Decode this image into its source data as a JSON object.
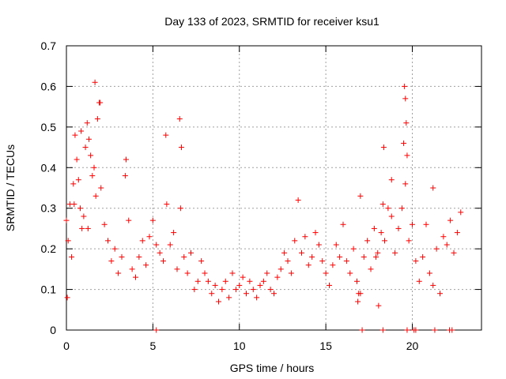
{
  "chart_data": {
    "type": "scatter",
    "title": "Day 133 of 2023, SRMTID for receiver ksu1",
    "xlabel": "GPS time / hours",
    "ylabel": "SRMTID / TECUs",
    "xlim": [
      0,
      24
    ],
    "ylim": [
      0,
      0.7
    ],
    "xticks": [
      0,
      5,
      10,
      15,
      20
    ],
    "xtick_labels": [
      "0",
      "5",
      "10",
      "15",
      "20"
    ],
    "yticks": [
      0,
      0.1,
      0.2,
      0.3,
      0.4,
      0.5,
      0.6,
      0.7
    ],
    "ytick_labels": [
      "0",
      "0.1",
      "0.2",
      "0.3",
      "0.4",
      "0.5",
      "0.6",
      "0.7"
    ],
    "grid": true,
    "marker": "+",
    "color": "#ff0000",
    "series": [
      {
        "name": "SRMTID",
        "x": [
          0.0,
          0.1,
          0.2,
          0.3,
          0.4,
          0.5,
          0.6,
          0.7,
          0.8,
          0.9,
          1.0,
          1.1,
          1.2,
          1.3,
          1.4,
          1.5,
          1.6,
          1.7,
          1.8,
          1.9,
          2.0,
          2.2,
          2.4,
          2.6,
          2.8,
          3.0,
          3.2,
          3.4,
          3.6,
          3.8,
          4.0,
          4.2,
          4.4,
          4.6,
          4.8,
          5.0,
          5.2,
          5.4,
          5.6,
          5.8,
          6.0,
          6.2,
          6.4,
          6.6,
          6.8,
          7.0,
          7.2,
          7.4,
          7.6,
          7.8,
          8.0,
          8.2,
          8.4,
          8.6,
          8.8,
          9.0,
          9.2,
          9.4,
          9.6,
          9.8,
          10.0,
          10.2,
          10.4,
          10.6,
          10.8,
          11.0,
          11.2,
          11.4,
          11.6,
          11.8,
          12.0,
          12.2,
          12.4,
          12.6,
          12.8,
          13.0,
          13.2,
          13.4,
          13.6,
          13.8,
          14.0,
          14.2,
          14.4,
          14.6,
          14.8,
          15.0,
          15.2,
          15.4,
          15.6,
          15.8,
          16.0,
          16.2,
          16.4,
          16.6,
          16.8,
          17.0,
          17.2,
          17.4,
          17.6,
          17.8,
          18.0,
          18.2,
          18.4,
          18.6,
          18.8,
          19.0,
          19.2,
          19.4,
          19.6,
          19.8,
          20.0,
          20.2,
          20.4,
          20.6,
          20.8,
          21.0,
          21.2,
          21.4,
          21.6,
          21.8,
          22.0,
          22.2,
          22.4,
          22.6,
          22.8,
          0.05,
          0.45,
          0.85,
          1.25,
          1.65,
          1.95,
          3.45,
          5.75,
          6.55,
          6.65,
          19.55,
          19.6,
          19.65,
          18.35,
          19.5,
          19.7,
          16.85,
          16.9,
          17.9,
          18.05,
          18.3,
          18.8,
          17.0,
          21.2,
          5.2,
          17.1,
          18.3,
          19.7,
          20.1,
          20.2,
          21.3,
          22.15,
          22.3
        ],
        "y": [
          0.27,
          0.22,
          0.31,
          0.18,
          0.36,
          0.48,
          0.42,
          0.37,
          0.3,
          0.25,
          0.28,
          0.45,
          0.51,
          0.47,
          0.43,
          0.38,
          0.4,
          0.33,
          0.52,
          0.56,
          0.35,
          0.26,
          0.22,
          0.17,
          0.2,
          0.14,
          0.18,
          0.38,
          0.27,
          0.15,
          0.13,
          0.18,
          0.22,
          0.16,
          0.23,
          0.27,
          0.21,
          0.19,
          0.17,
          0.31,
          0.21,
          0.24,
          0.15,
          0.3,
          0.18,
          0.14,
          0.19,
          0.1,
          0.12,
          0.17,
          0.14,
          0.12,
          0.09,
          0.11,
          0.07,
          0.1,
          0.12,
          0.08,
          0.14,
          0.1,
          0.11,
          0.13,
          0.09,
          0.12,
          0.1,
          0.08,
          0.11,
          0.12,
          0.14,
          0.1,
          0.09,
          0.13,
          0.15,
          0.19,
          0.17,
          0.14,
          0.22,
          0.32,
          0.19,
          0.23,
          0.16,
          0.18,
          0.24,
          0.21,
          0.17,
          0.14,
          0.11,
          0.16,
          0.21,
          0.18,
          0.26,
          0.17,
          0.14,
          0.2,
          0.12,
          0.09,
          0.18,
          0.22,
          0.15,
          0.25,
          0.19,
          0.24,
          0.22,
          0.3,
          0.28,
          0.19,
          0.25,
          0.3,
          0.36,
          0.22,
          0.26,
          0.17,
          0.12,
          0.18,
          0.26,
          0.14,
          0.11,
          0.2,
          0.09,
          0.23,
          0.21,
          0.27,
          0.19,
          0.24,
          0.29,
          0.08,
          0.31,
          0.49,
          0.25,
          0.61,
          0.56,
          0.42,
          0.48,
          0.52,
          0.45,
          0.6,
          0.57,
          0.51,
          0.45,
          0.46,
          0.43,
          0.07,
          0.09,
          0.18,
          0.06,
          0.31,
          0.37,
          0.33,
          0.35,
          0.0,
          0.0,
          0.0,
          0.0,
          0.0,
          0.0,
          0.0,
          0.0,
          0.0
        ]
      }
    ]
  }
}
